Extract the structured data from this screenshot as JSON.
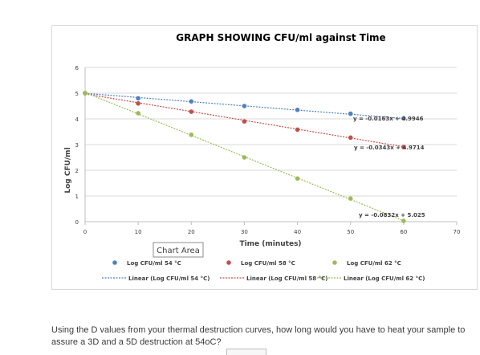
{
  "chart_data": {
    "type": "scatter",
    "title": "GRAPH SHOWING CFU/ml against  Time",
    "xlabel": "Time (minutes)",
    "ylabel": "Log CFU/ml",
    "xlim": [
      0,
      70
    ],
    "ylim": [
      0,
      6
    ],
    "x_ticks": [
      0,
      10,
      20,
      30,
      40,
      50,
      60,
      70
    ],
    "y_ticks": [
      0,
      1,
      2,
      3,
      4,
      5,
      6
    ],
    "grid": "horizontal",
    "legend_position": "bottom",
    "series": [
      {
        "name": "Log CFU/ml 54 °C",
        "color": "#4f81bd",
        "x": [
          0,
          10,
          20,
          30,
          40,
          50,
          60
        ],
        "y": [
          5.0,
          4.8,
          4.68,
          4.5,
          4.35,
          4.2,
          4.02
        ],
        "trendline": {
          "name": "Linear (Log CFU/ml 54 °C)",
          "slope": -0.0163,
          "intercept": 4.9946,
          "equation": "y = -0.0163x + 4.9946"
        }
      },
      {
        "name": "Log CFU/ml 58 °C",
        "color": "#c0504d",
        "x": [
          0,
          10,
          20,
          30,
          40,
          50,
          60
        ],
        "y": [
          5.0,
          4.6,
          4.28,
          3.9,
          3.58,
          3.27,
          2.9
        ],
        "trendline": {
          "name": "Linear (Log CFU/ml 58 °C)",
          "slope": -0.0343,
          "intercept": 4.9714,
          "equation": "y = -0.0343x + 4.9714"
        }
      },
      {
        "name": "Log CFU/ml 62 °C",
        "color": "#9bbb59",
        "x": [
          0,
          10,
          20,
          30,
          40,
          50,
          60
        ],
        "y": [
          5.0,
          4.22,
          3.38,
          2.5,
          1.68,
          0.9,
          0.03
        ],
        "trendline": {
          "name": "Linear (Log CFU/ml 62 °C)",
          "slope": -0.0832,
          "intercept": 5.025,
          "equation": "y = -0.0832x + 5.025"
        }
      }
    ],
    "annotations": [
      "Chart Area"
    ]
  },
  "question": {
    "text": "Using the D values from your thermal destruction curves, how long would you have to heat your sample to assure a 3D and a 5D destruction at 54oC?"
  }
}
